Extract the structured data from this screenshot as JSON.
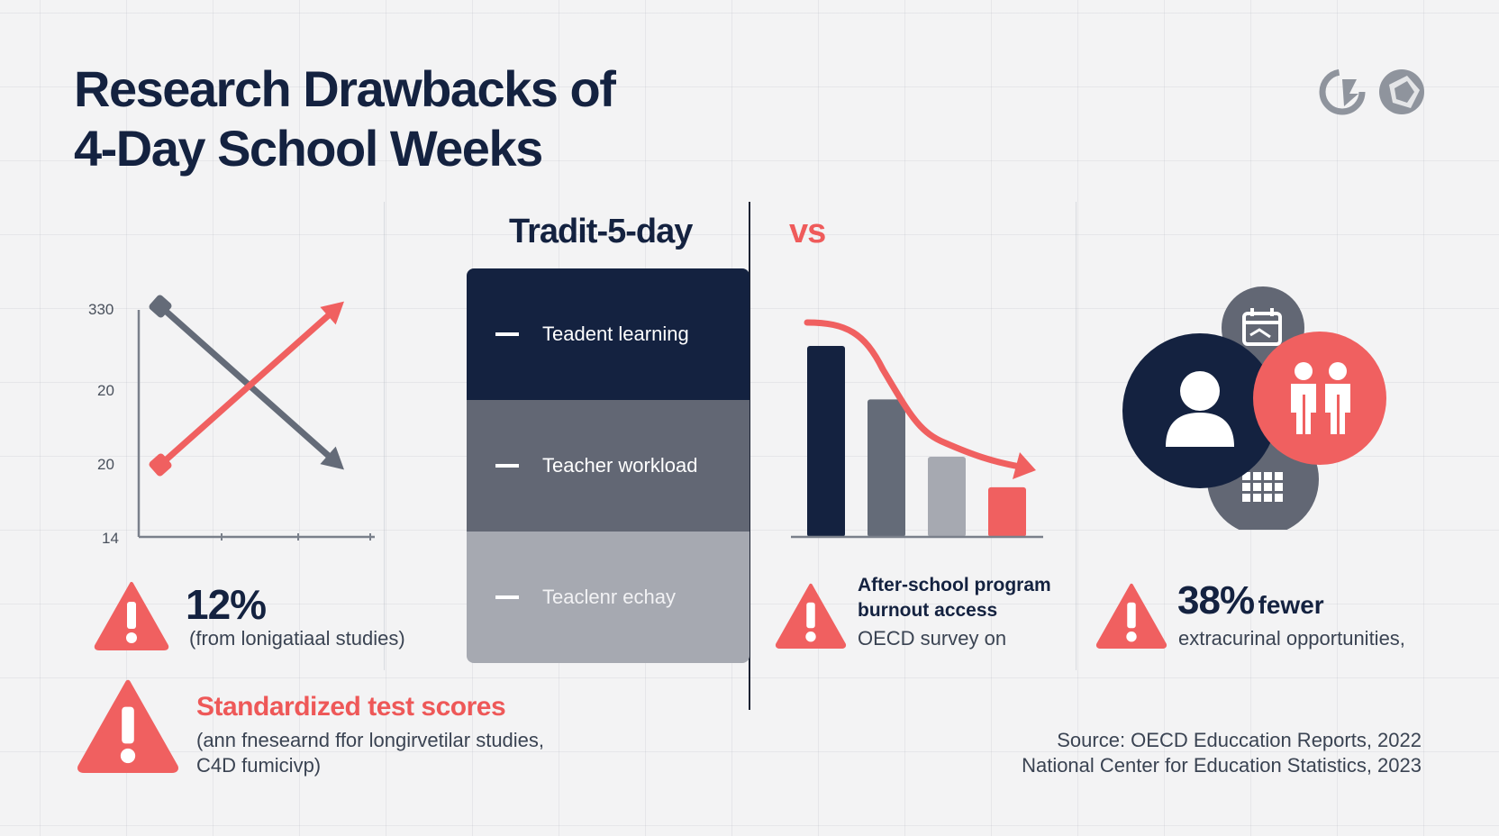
{
  "title": {
    "line1": "Research Drawbacks of",
    "line2": "4-Day School Weeks"
  },
  "headers": {
    "traditional": "Tradit-5-day",
    "vs": "vs"
  },
  "comparison": {
    "items": [
      {
        "label": "Teadent learning"
      },
      {
        "label": "Teacher workload"
      },
      {
        "label": "Teaclenr echay"
      }
    ]
  },
  "line_chart": {
    "y_ticks": [
      "330",
      "20",
      "20",
      "14"
    ]
  },
  "stats": {
    "scores": {
      "value": "12%",
      "note": "(from lonigatiaal studies)"
    },
    "after_school": {
      "line1": "After-school program",
      "line2": "burnout access",
      "note": "OECD survey on"
    },
    "extracurricular": {
      "value": "38%",
      "word": "fewer",
      "note": "extracurinal opportunities,"
    }
  },
  "standardized": {
    "title": "Standardized test scores",
    "line1": "(ann fnesearnd ffor longirvetilar studies,",
    "line2": "C4D fumicivp)"
  },
  "source": {
    "line1": "Source: OECD Educcation Reports, 2022",
    "line2": "National Center for Education Statistics, 2023"
  },
  "chart_data": [
    {
      "type": "line",
      "y_tick_labels": [
        "330",
        "20",
        "20",
        "14"
      ],
      "series": [
        {
          "values": [
            4,
            1
          ],
          "color": "#646b78"
        },
        {
          "values": [
            1,
            4
          ],
          "color": "#f06060"
        }
      ]
    },
    {
      "type": "bar",
      "values": [
        100,
        72,
        42,
        26
      ],
      "colors": [
        "#142240",
        "#646b78",
        "#a6a9b1",
        "#f06060"
      ],
      "trend_line_color": "#f06060"
    }
  ],
  "colors": {
    "navy": "#142240",
    "slate": "#626774",
    "grey": "#a6a9b1",
    "coral": "#ef5b5b",
    "background": "#f3f3f4"
  },
  "icons": {
    "logo": "globe-logo-icon",
    "warning": "warning-triangle-icon",
    "person": "person-icon",
    "family": "family-icon",
    "calendar": "calendar-icon",
    "grid": "grid-calendar-icon"
  }
}
